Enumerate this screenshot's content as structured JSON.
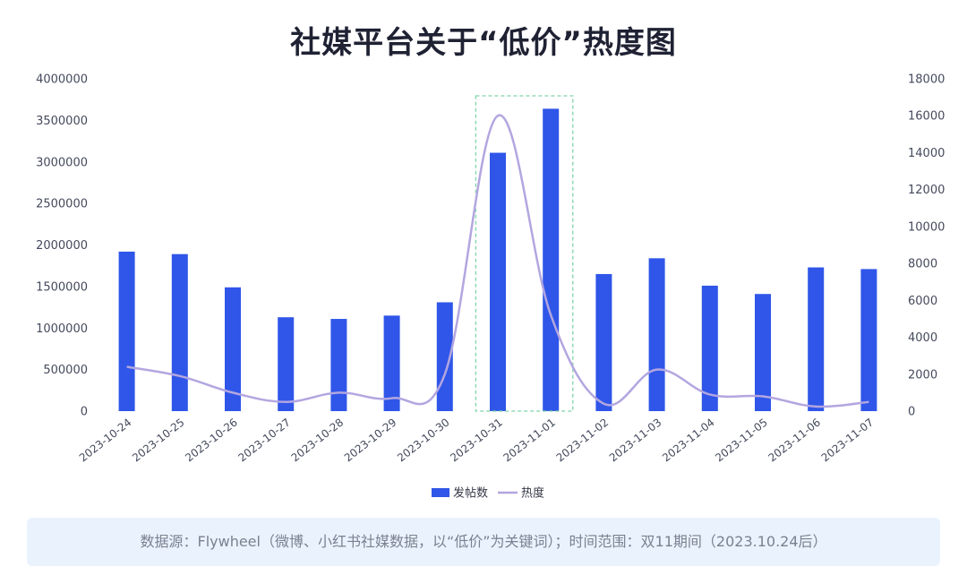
{
  "title": "社媒平台关于“低价”热度图",
  "footer": {
    "note": "数据源：Flywheel（微博、小红书社媒数据，以“低价”为关键词）；时间范围：双11期间（2023.10.24后）"
  },
  "colors": {
    "bar": "#2f56e8",
    "line": "#b3a6e0",
    "highlight": "#7fd4a8"
  },
  "chart_data": {
    "type": "bar",
    "categories": [
      "2023-10-24",
      "2023-10-25",
      "2023-10-26",
      "2023-10-27",
      "2023-10-28",
      "2023-10-29",
      "2023-10-30",
      "2023-10-31",
      "2023-11-01",
      "2023-11-02",
      "2023-11-03",
      "2023-11-04",
      "2023-11-05",
      "2023-11-06",
      "2023-11-07"
    ],
    "series": [
      {
        "name": "发帖数",
        "type": "bar",
        "axis": "left",
        "values": [
          1920000,
          1890000,
          1490000,
          1130000,
          1110000,
          1150000,
          1310000,
          3110000,
          3640000,
          1650000,
          1840000,
          1510000,
          1410000,
          1730000,
          1710000
        ]
      },
      {
        "name": "热度",
        "type": "line",
        "smooth": true,
        "axis": "right",
        "values": [
          2400,
          1900,
          1000,
          500,
          1000,
          700,
          2000,
          16000,
          5200,
          400,
          2250,
          900,
          800,
          250,
          500
        ]
      }
    ],
    "y_left": {
      "min": 0,
      "max": 4000000,
      "ticks": [
        0,
        500000,
        1000000,
        1500000,
        2000000,
        2500000,
        3000000,
        3500000,
        4000000
      ]
    },
    "y_right": {
      "min": 0,
      "max": 18000,
      "ticks": [
        0,
        2000,
        4000,
        6000,
        8000,
        10000,
        12000,
        14000,
        16000,
        18000
      ]
    },
    "highlight_range": [
      "2023-10-31",
      "2023-11-01"
    ],
    "legend_position": "bottom"
  }
}
